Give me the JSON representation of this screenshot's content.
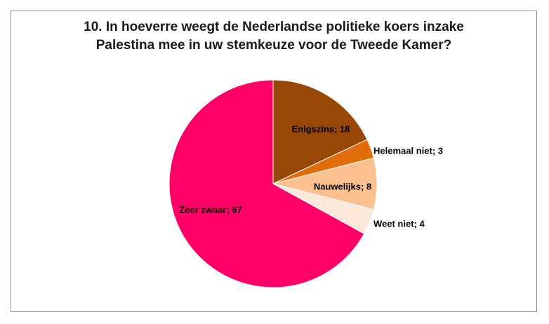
{
  "title_line1": "10.    In hoeverre weegt de Nederlandse politieke koers inzake",
  "title_line2": "Palestina mee in uw stemkeuze voor de Tweede Kamer?",
  "chart_data": {
    "type": "pie",
    "title": "10.    In hoeverre weegt de Nederlandse politieke koers inzake Palestina mee in uw stemkeuze voor de Tweede Kamer?",
    "slices": [
      {
        "label": "Enigszins",
        "value": 18,
        "color": "#974706",
        "data_label": "Enigszins; 18"
      },
      {
        "label": "Helemaal niet",
        "value": 3,
        "color": "#e36c0a",
        "data_label": "Helemaal niet; 3"
      },
      {
        "label": "Nauwelijks",
        "value": 8,
        "color": "#fac090",
        "data_label": "Nauwelijks; 8"
      },
      {
        "label": "Weet niet",
        "value": 4,
        "color": "#fde9d9",
        "data_label": "Weet niet; 4"
      },
      {
        "label": "Zeer zwaar",
        "value": 67,
        "color": "#ff0066",
        "data_label": "Zeer zwaar; 67"
      }
    ],
    "legend": "none"
  }
}
